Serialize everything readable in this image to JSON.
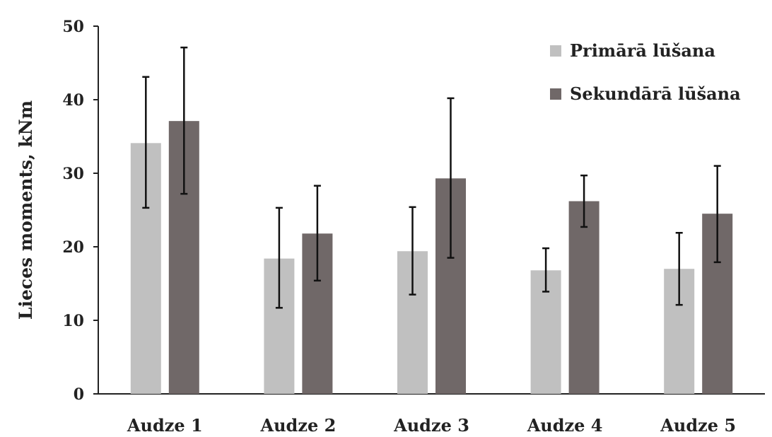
{
  "chart_data": {
    "type": "bar",
    "title": "",
    "xlabel": "",
    "ylabel": "Lieces moments, kNm",
    "ylim": [
      0,
      50
    ],
    "yticks": [
      0,
      10,
      20,
      30,
      40,
      50
    ],
    "grid": false,
    "legend_position": "top-right",
    "categories": [
      "Audze 1",
      "Audze 2",
      "Audze 3",
      "Audze 4",
      "Audze 5"
    ],
    "series": [
      {
        "name": "Primārā lūšana",
        "color": "#c0c0c0",
        "values": [
          34.1,
          18.4,
          19.4,
          16.8,
          17.0
        ],
        "error_low": [
          25.3,
          11.7,
          13.5,
          13.9,
          12.1
        ],
        "error_high": [
          43.1,
          25.3,
          25.4,
          19.8,
          21.9
        ]
      },
      {
        "name": "Sekundārā lūšana",
        "color": "#706868",
        "values": [
          37.1,
          21.8,
          29.3,
          26.2,
          24.5
        ],
        "error_low": [
          27.2,
          15.4,
          18.5,
          22.7,
          17.9
        ],
        "error_high": [
          47.1,
          28.3,
          40.2,
          29.7,
          31.0
        ]
      }
    ]
  }
}
